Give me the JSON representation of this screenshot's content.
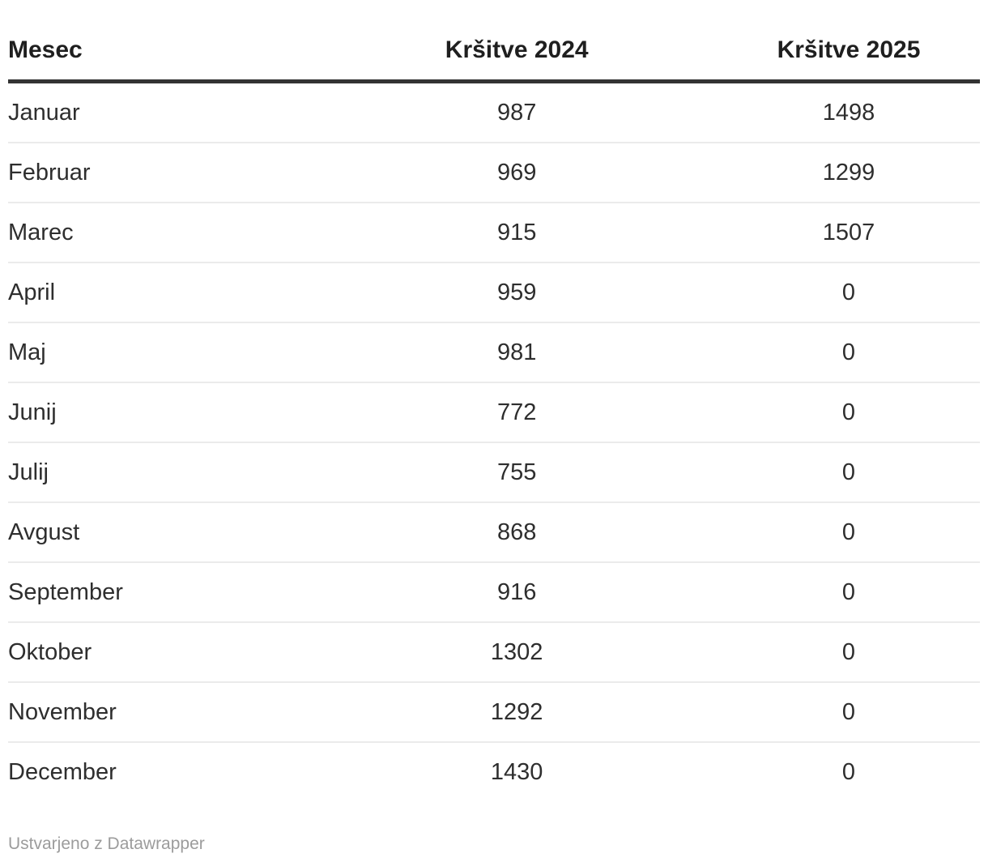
{
  "table": {
    "columns": [
      {
        "label": "Mesec",
        "align": "left"
      },
      {
        "label": "Kršitve 2024",
        "align": "center"
      },
      {
        "label": "Kršitve 2025",
        "align": "center"
      }
    ],
    "rows": [
      [
        "Januar",
        "987",
        "1498"
      ],
      [
        "Februar",
        "969",
        "1299"
      ],
      [
        "Marec",
        "915",
        "1507"
      ],
      [
        "April",
        "959",
        "0"
      ],
      [
        "Maj",
        "981",
        "0"
      ],
      [
        "Junij",
        "772",
        "0"
      ],
      [
        "Julij",
        "755",
        "0"
      ],
      [
        "Avgust",
        "868",
        "0"
      ],
      [
        "September",
        "916",
        "0"
      ],
      [
        "Oktober",
        "1302",
        "0"
      ],
      [
        "November",
        "1292",
        "0"
      ],
      [
        "December",
        "1430",
        "0"
      ]
    ]
  },
  "footer": {
    "attribution": "Ustvarjeno z Datawrapper"
  },
  "colors": {
    "header_rule": "#333333",
    "row_divider": "#ebebeb",
    "footer_text": "#9c9c9c",
    "body_text": "#2e2e2e"
  },
  "chart_data": {
    "type": "table",
    "title": "",
    "columns": [
      "Mesec",
      "Kršitve 2024",
      "Kršitve 2025"
    ],
    "categories": [
      "Januar",
      "Februar",
      "Marec",
      "April",
      "Maj",
      "Junij",
      "Julij",
      "Avgust",
      "September",
      "Oktober",
      "November",
      "December"
    ],
    "series": [
      {
        "name": "Kršitve 2024",
        "values": [
          987,
          969,
          915,
          959,
          981,
          772,
          755,
          868,
          916,
          1302,
          1292,
          1430
        ]
      },
      {
        "name": "Kršitve 2025",
        "values": [
          1498,
          1299,
          1507,
          0,
          0,
          0,
          0,
          0,
          0,
          0,
          0,
          0
        ]
      }
    ],
    "attribution": "Ustvarjeno z Datawrapper"
  }
}
